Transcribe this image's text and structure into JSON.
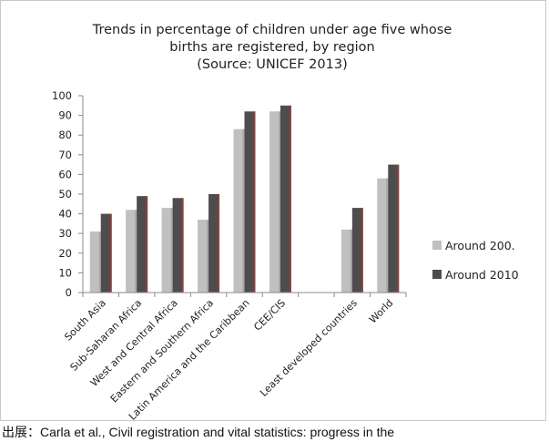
{
  "caption": "出展：Carla et al., Civil registration and vital statistics: progress in the",
  "chart_data": {
    "type": "bar",
    "title": [
      "Trends in percentage of children under age five whose",
      "births are registered, by region",
      "(Source: UNICEF 2013)"
    ],
    "categories": [
      "South Asia",
      "Sub-Saharan Africa",
      "West and Central Africa",
      "Eastern and Southern Africa",
      "Latin America and the Caribbean",
      "CEE/CIS",
      "",
      "Least developed countries",
      "World"
    ],
    "series": [
      {
        "name": "Around 200.",
        "color": "#c0c0c0",
        "values": [
          31,
          42,
          43,
          37,
          83,
          92,
          null,
          32,
          58
        ]
      },
      {
        "name": "Around 2010",
        "color": "#4d4d4d",
        "values": [
          40,
          49,
          48,
          50,
          92,
          95,
          null,
          43,
          65
        ]
      }
    ],
    "ylim": [
      0,
      100
    ],
    "yticks": [
      "0",
      "10",
      "20",
      "30",
      "40",
      "50",
      "60",
      "70",
      "80",
      "90",
      "100"
    ],
    "grid": false,
    "legend_position": "right"
  }
}
